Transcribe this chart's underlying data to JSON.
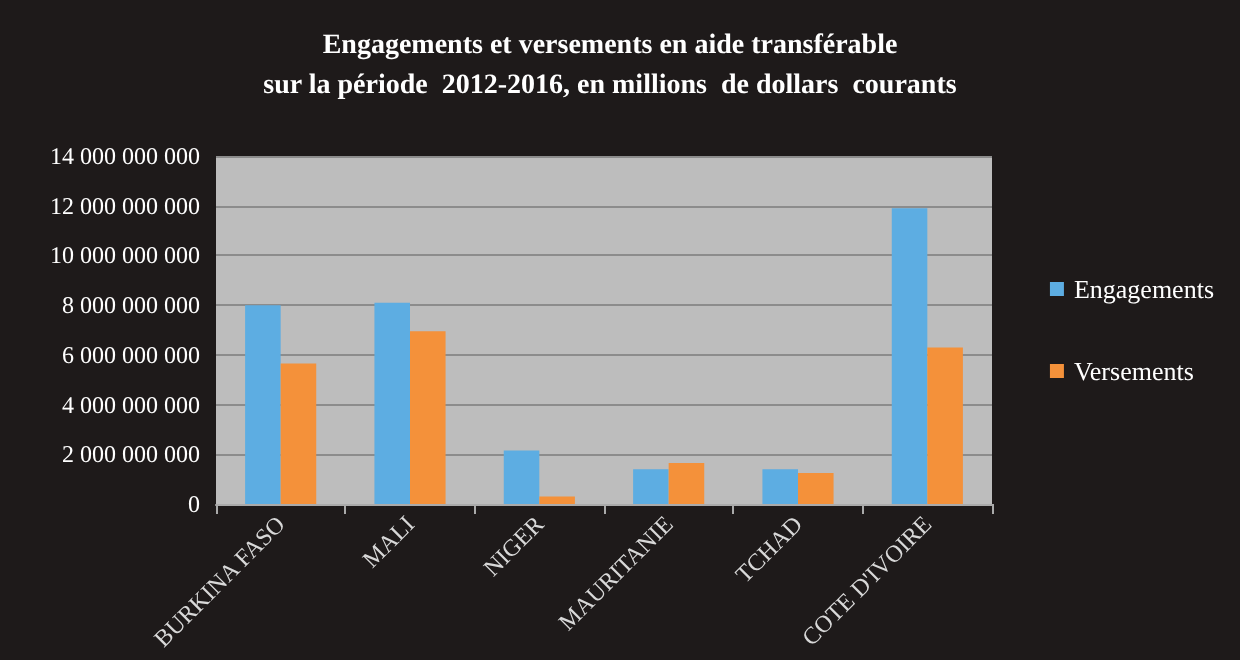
{
  "chart_data": {
    "type": "bar",
    "title": "Engagements et versements en aide transférable\nsur la période  2012-2016, en millions  de dollars  courants",
    "categories": [
      "BURKINA FASO",
      "MALI",
      "NIGER",
      "MAURITANIE",
      "TCHAD",
      "COTE D'IVOIRE"
    ],
    "series": [
      {
        "name": "Engagements",
        "color": "#5dade2",
        "values": [
          8000000000,
          8100000000,
          2150000000,
          1400000000,
          1400000000,
          11900000000
        ]
      },
      {
        "name": "Versements",
        "color": "#f4913a",
        "values": [
          5650000000,
          6950000000,
          300000000,
          1650000000,
          1250000000,
          6300000000
        ]
      }
    ],
    "ylim": [
      0,
      14000000000
    ],
    "yticks": [
      {
        "value": 0,
        "label": "0"
      },
      {
        "value": 2000000000,
        "label": "2 000 000 000"
      },
      {
        "value": 4000000000,
        "label": "4 000 000 000"
      },
      {
        "value": 6000000000,
        "label": "6 000 000 000"
      },
      {
        "value": 8000000000,
        "label": "8 000 000 000"
      },
      {
        "value": 10000000000,
        "label": "10 000 000 000"
      },
      {
        "value": 12000000000,
        "label": "12 000 000 000"
      },
      {
        "value": 14000000000,
        "label": "14 000 000 000"
      }
    ],
    "grid": "y",
    "legend": "right"
  }
}
